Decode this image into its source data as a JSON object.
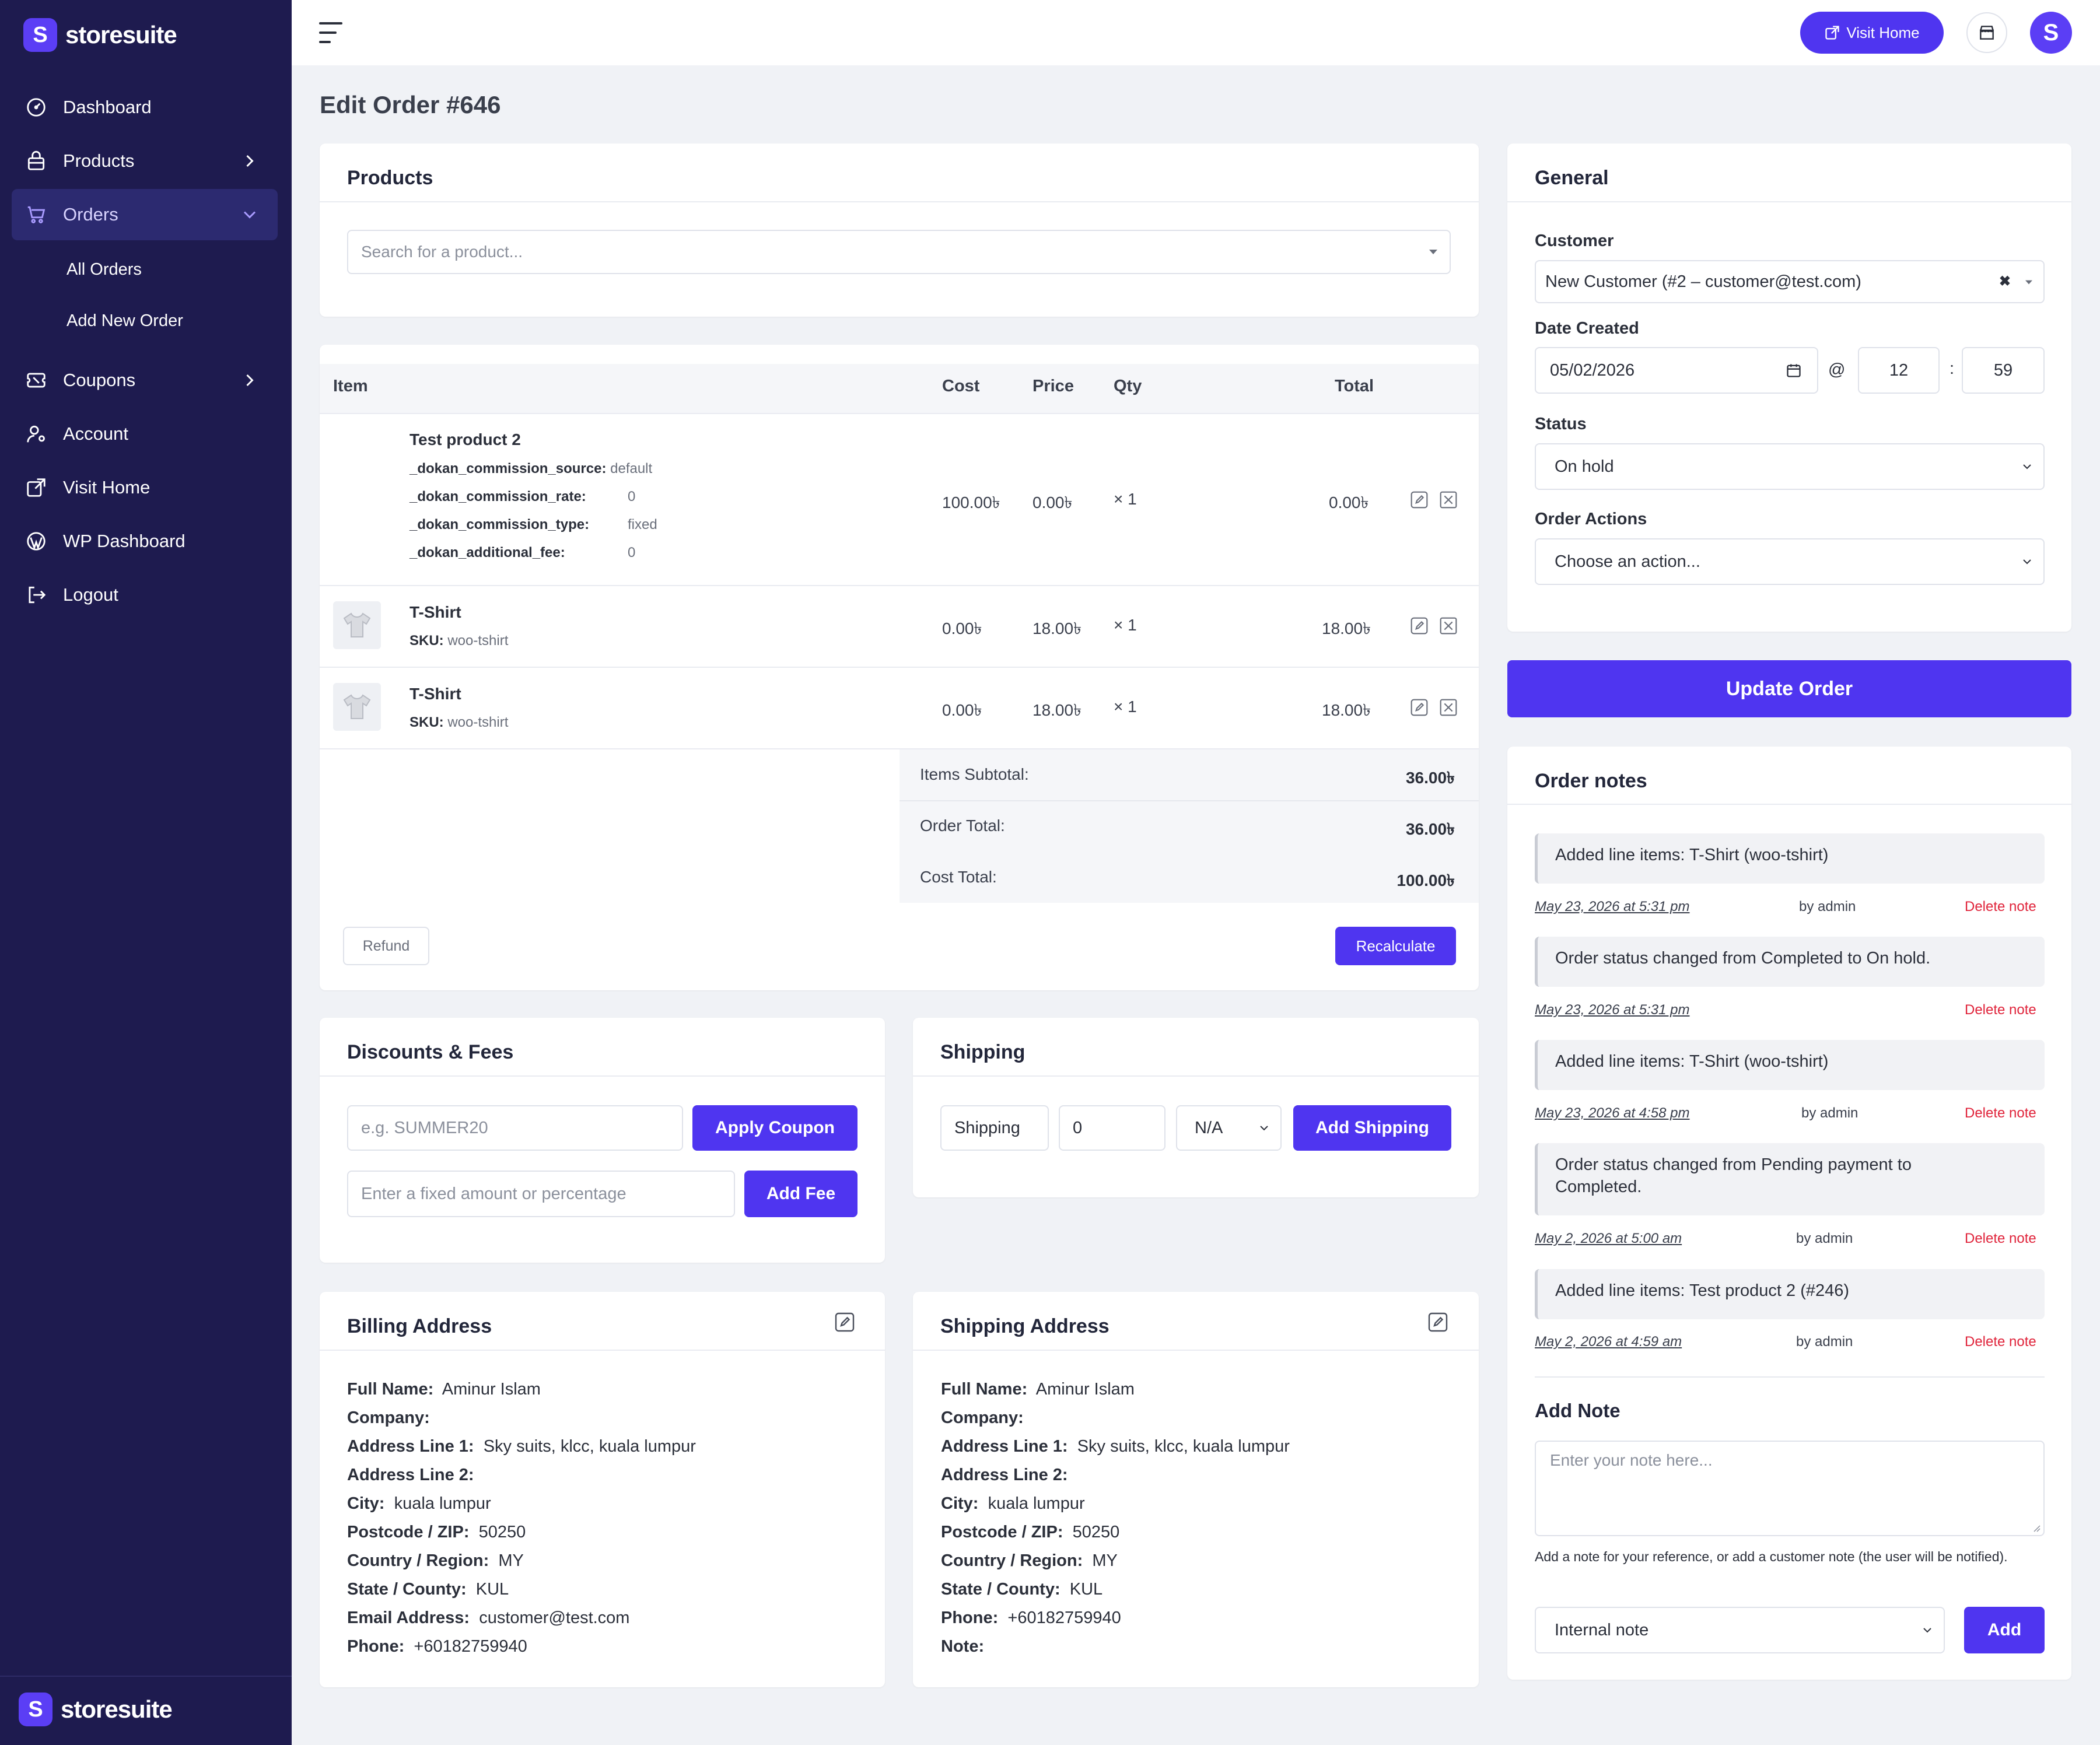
{
  "brand": {
    "name": "storesuite",
    "mark": "S"
  },
  "sidebar": {
    "items": [
      {
        "label": "Dashboard",
        "icon": "dashboard-gauge-icon"
      },
      {
        "label": "Products",
        "icon": "products-bag-icon"
      },
      {
        "label": "Orders",
        "icon": "orders-cart-icon"
      },
      {
        "label": "Coupons",
        "icon": "coupons-ticket-icon"
      },
      {
        "label": "Account",
        "icon": "account-user-icon"
      },
      {
        "label": "Visit Home",
        "icon": "external-link-icon"
      },
      {
        "label": "WP Dashboard",
        "icon": "wordpress-icon"
      },
      {
        "label": "Logout",
        "icon": "logout-icon"
      }
    ],
    "orders_sub": [
      "All Orders",
      "Add New Order"
    ]
  },
  "topbar": {
    "visit_home": "Visit Home",
    "avatar_letter": "S"
  },
  "page": {
    "title": "Edit Order #646"
  },
  "products": {
    "title": "Products",
    "search_placeholder": "Search for a product...",
    "headers": {
      "item": "Item",
      "cost": "Cost",
      "price": "Price",
      "qty": "Qty",
      "total": "Total"
    },
    "rows": [
      {
        "name": "Test product 2",
        "meta": [
          {
            "key": "_dokan_commission_source:",
            "value": "default"
          },
          {
            "key": "_dokan_commission_rate:",
            "value": "0"
          },
          {
            "key": "_dokan_commission_type:",
            "value": "fixed"
          },
          {
            "key": "_dokan_additional_fee:",
            "value": "0"
          }
        ],
        "cost": "100.00৳",
        "price": "0.00৳",
        "qty": "× 1",
        "total": "0.00৳"
      },
      {
        "name": "T-Shirt",
        "sku_label": "SKU:",
        "sku": "woo-tshirt",
        "cost": "0.00৳",
        "price": "18.00৳",
        "qty": "× 1",
        "total": "18.00৳"
      },
      {
        "name": "T-Shirt",
        "sku_label": "SKU:",
        "sku": "woo-tshirt",
        "cost": "0.00৳",
        "price": "18.00৳",
        "qty": "× 1",
        "total": "18.00৳"
      }
    ],
    "totals": {
      "items_subtotal_label": "Items Subtotal:",
      "items_subtotal": "36.00৳",
      "order_total_label": "Order Total:",
      "order_total": "36.00৳",
      "cost_total_label": "Cost Total:",
      "cost_total": "100.00৳"
    },
    "refund": "Refund",
    "recalculate": "Recalculate"
  },
  "discounts": {
    "title": "Discounts & Fees",
    "coupon_placeholder": "e.g. SUMMER20",
    "apply_coupon": "Apply Coupon",
    "fee_placeholder": "Enter a fixed amount or percentage",
    "add_fee": "Add Fee"
  },
  "shipping": {
    "title": "Shipping",
    "name_value": "Shipping",
    "amount_value": "0",
    "method_value": "N/A",
    "add_shipping": "Add Shipping"
  },
  "billing": {
    "title": "Billing Address",
    "lines": [
      {
        "label": "Full Name:",
        "value": "Aminur Islam"
      },
      {
        "label": "Company:",
        "value": ""
      },
      {
        "label": "Address Line 1:",
        "value": "Sky suits, klcc, kuala lumpur"
      },
      {
        "label": "Address Line 2:",
        "value": ""
      },
      {
        "label": "City:",
        "value": "kuala lumpur"
      },
      {
        "label": "Postcode / ZIP:",
        "value": "50250"
      },
      {
        "label": "Country / Region:",
        "value": "MY"
      },
      {
        "label": "State / County:",
        "value": "KUL"
      },
      {
        "label": "Email Address:",
        "value": "customer@test.com"
      },
      {
        "label": "Phone:",
        "value": "+60182759940"
      }
    ]
  },
  "shipping_address": {
    "title": "Shipping Address",
    "lines": [
      {
        "label": "Full Name:",
        "value": "Aminur Islam"
      },
      {
        "label": "Company:",
        "value": ""
      },
      {
        "label": "Address Line 1:",
        "value": "Sky suits, klcc, kuala lumpur"
      },
      {
        "label": "Address Line 2:",
        "value": ""
      },
      {
        "label": "City:",
        "value": "kuala lumpur"
      },
      {
        "label": "Postcode / ZIP:",
        "value": "50250"
      },
      {
        "label": "Country / Region:",
        "value": "MY"
      },
      {
        "label": "State / County:",
        "value": "KUL"
      },
      {
        "label": "Phone:",
        "value": "+60182759940"
      },
      {
        "label": "Note:",
        "value": ""
      }
    ]
  },
  "general": {
    "title": "General",
    "customer_label": "Customer",
    "customer_value": "New Customer (#2 – customer@test.com)",
    "date_label": "Date Created",
    "date_value": "05/02/2026",
    "at": "@",
    "hour": "12",
    "colon": ":",
    "minute": "59",
    "status_label": "Status",
    "status_value": "On hold",
    "actions_label": "Order Actions",
    "actions_value": "Choose an action..."
  },
  "update_order": "Update Order",
  "order_notes": {
    "title": "Order notes",
    "notes": [
      {
        "text": "Added line items: T-Shirt (woo-tshirt)",
        "date": "May 23, 2026 at 5:31 pm",
        "by": "by admin",
        "delete": "Delete note"
      },
      {
        "text": "Order status changed from Completed to On hold.",
        "date": "May 23, 2026 at 5:31 pm",
        "by": "",
        "delete": "Delete note"
      },
      {
        "text": "Added line items: T-Shirt (woo-tshirt)",
        "date": "May 23, 2026 at 4:58 pm",
        "by": "by admin",
        "delete": "Delete note"
      },
      {
        "text": "Order status changed from Pending payment to Completed.",
        "date": "May 2, 2026 at 5:00 am",
        "by": "by admin",
        "delete": "Delete note"
      },
      {
        "text": "Added line items: Test product 2 (#246)",
        "date": "May 2, 2026 at 4:59 am",
        "by": "by admin",
        "delete": "Delete note"
      }
    ],
    "add_note_title": "Add Note",
    "note_placeholder": "Enter your note here...",
    "help_text": "Add a note for your reference, or add a customer note (the user will be notified).",
    "note_type": "Internal note",
    "add": "Add"
  },
  "colors": {
    "sidebar": "#1e1b4f",
    "accent": "#4f35f0",
    "delete": "#e0243b"
  }
}
